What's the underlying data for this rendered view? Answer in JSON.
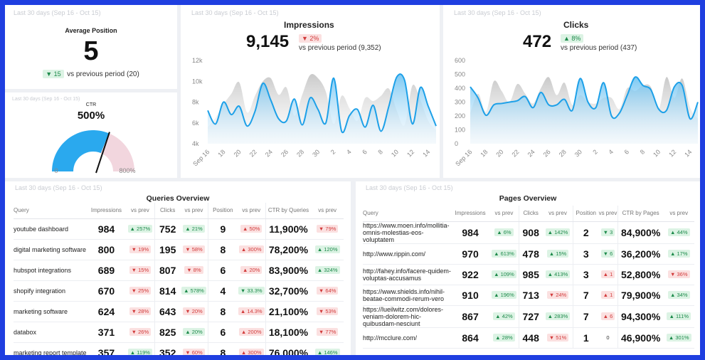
{
  "avg_position": {
    "period": "Last 30 days (Sep 16 - Oct 15)",
    "title": "Average Position",
    "value": "5",
    "delta": "▼ 15",
    "vs": "vs previous period (20)"
  },
  "ctr": {
    "period": "Last 30 days (Sep 16 - Oct 15)",
    "title": "CTR",
    "value": "500%",
    "gauge_min": "0",
    "gauge_max": "800%",
    "gauge_fraction": 0.625,
    "colors": {
      "fill": "#2aa9ee",
      "rest": "#f2d6de"
    }
  },
  "impressions": {
    "period": "Last 30 days (Sep 16 - Oct 15)",
    "title": "Impressions",
    "value": "9,145",
    "delta": "▼ 2%",
    "vs": "vs previous period (9,352)"
  },
  "clicks": {
    "period": "Last 30 days (Sep 16 - Oct 15)",
    "title": "Clicks",
    "value": "472",
    "delta": "▲ 8%",
    "vs": "vs previous period (437)"
  },
  "chart_data": [
    {
      "type": "area",
      "title": "Impressions",
      "x": [
        "Sep 16",
        "17",
        "18",
        "19",
        "20",
        "21",
        "22",
        "23",
        "24",
        "25",
        "26",
        "27",
        "28",
        "29",
        "30",
        "1",
        "2",
        "3",
        "4",
        "5",
        "6",
        "7",
        "8",
        "9",
        "10",
        "11",
        "12",
        "13",
        "14",
        "15"
      ],
      "xtick_labels": [
        "Sep 16",
        "18",
        "20",
        "22",
        "24",
        "26",
        "28",
        "30",
        "2",
        "4",
        "6",
        "8",
        "10",
        "12",
        "14"
      ],
      "ylim": [
        4000,
        12000
      ],
      "yticks": [
        "12k",
        "10k",
        "8k",
        "6k",
        "4k"
      ],
      "series": [
        {
          "values": [
            7200,
            5900,
            8000,
            6800,
            7600,
            5700,
            7100,
            9800,
            8200,
            6400,
            6200,
            8300,
            5800,
            8400,
            7300,
            6000,
            10300,
            5200,
            6700,
            7300,
            5600,
            7700,
            5200,
            7600,
            10400,
            10100,
            5900,
            9400,
            7600,
            5700
          ]
        },
        {
          "values": [
            5600,
            6500,
            7800,
            8800,
            9900,
            7000,
            8600,
            10000,
            10300,
            8700,
            9400,
            6700,
            8700,
            10600,
            10300,
            9000,
            5900,
            8600,
            7400,
            6200,
            8400,
            8100,
            8600,
            9300,
            7200,
            5800,
            9600,
            8200,
            6200,
            5300
          ]
        }
      ],
      "colors": {
        "line": "#1da0e8",
        "area": "#cfe6f8",
        "prev": "#d9d9d9"
      }
    },
    {
      "type": "area",
      "title": "Clicks",
      "x": [
        "Sep 16",
        "17",
        "18",
        "19",
        "20",
        "21",
        "22",
        "23",
        "24",
        "25",
        "26",
        "27",
        "28",
        "29",
        "30",
        "1",
        "2",
        "3",
        "4",
        "5",
        "6",
        "7",
        "8",
        "9",
        "10",
        "11",
        "12",
        "13",
        "14",
        "15"
      ],
      "xtick_labels": [
        "Sep 16",
        "18",
        "20",
        "22",
        "24",
        "26",
        "28",
        "30",
        "2",
        "4",
        "6",
        "8",
        "10",
        "12",
        "14"
      ],
      "ylim": [
        0,
        600
      ],
      "yticks": [
        "600",
        "500",
        "400",
        "300",
        "200",
        "100",
        "0"
      ],
      "series": [
        {
          "values": [
            410,
            330,
            205,
            280,
            290,
            300,
            310,
            340,
            260,
            370,
            280,
            280,
            320,
            240,
            470,
            300,
            260,
            440,
            200,
            220,
            350,
            480,
            420,
            390,
            250,
            240,
            410,
            420,
            180,
            300
          ]
        },
        {
          "values": [
            220,
            360,
            230,
            450,
            380,
            300,
            430,
            360,
            290,
            400,
            480,
            350,
            440,
            280,
            350,
            300,
            290,
            330,
            330,
            250,
            400,
            380,
            420,
            410,
            250,
            480,
            330,
            470,
            260,
            180
          ]
        }
      ],
      "colors": {
        "line": "#1da0e8",
        "area": "#cfe6f8",
        "prev": "#d9d9d9"
      }
    }
  ],
  "queries": {
    "period": "Last 30 days (Sep 16 - Oct 15)",
    "title": "Queries Overview",
    "headers": [
      "Query",
      "Impressions",
      "vs prev",
      "Clicks",
      "vs prev",
      "Position",
      "vs prev",
      "CTR by Queries",
      "vs prev"
    ],
    "rows": [
      {
        "name": "youtube dashboard",
        "imp": "984",
        "imp_d": "▲ 257%",
        "imp_up": true,
        "clk": "752",
        "clk_d": "▲ 21%",
        "clk_up": true,
        "pos": "9",
        "pos_d": "▲ 50%",
        "pos_up": false,
        "ctr": "11,900%",
        "ctr_d": "▼ 79%",
        "ctr_up": false
      },
      {
        "name": "digital marketing software",
        "imp": "800",
        "imp_d": "▼ 19%",
        "imp_up": false,
        "clk": "195",
        "clk_d": "▼ 58%",
        "clk_up": false,
        "pos": "8",
        "pos_d": "▲ 300%",
        "pos_up": false,
        "ctr": "78,200%",
        "ctr_d": "▲ 120%",
        "ctr_up": true
      },
      {
        "name": "hubspot integrations",
        "imp": "689",
        "imp_d": "▼ 15%",
        "imp_up": false,
        "clk": "807",
        "clk_d": "▼ 8%",
        "clk_up": false,
        "pos": "6",
        "pos_d": "▲ 20%",
        "pos_up": false,
        "ctr": "83,900%",
        "ctr_d": "▲ 324%",
        "ctr_up": true
      },
      {
        "name": "shopify integration",
        "imp": "670",
        "imp_d": "▼ 25%",
        "imp_up": false,
        "clk": "814",
        "clk_d": "▲ 578%",
        "clk_up": true,
        "pos": "4",
        "pos_d": "▼ 33.3%",
        "pos_up": true,
        "ctr": "32,700%",
        "ctr_d": "▼ 64%",
        "ctr_up": false
      },
      {
        "name": "marketing software",
        "imp": "624",
        "imp_d": "▼ 28%",
        "imp_up": false,
        "clk": "643",
        "clk_d": "▼ 20%",
        "clk_up": false,
        "pos": "8",
        "pos_d": "▲ 14.3%",
        "pos_up": false,
        "ctr": "21,100%",
        "ctr_d": "▼ 53%",
        "ctr_up": false
      },
      {
        "name": "databox",
        "imp": "371",
        "imp_d": "▼ 26%",
        "imp_up": false,
        "clk": "825",
        "clk_d": "▲ 20%",
        "clk_up": true,
        "pos": "6",
        "pos_d": "▲ 200%",
        "pos_up": false,
        "ctr": "18,100%",
        "ctr_d": "▼ 77%",
        "ctr_up": false
      },
      {
        "name": "marketing report template",
        "imp": "357",
        "imp_d": "▲ 119%",
        "imp_up": true,
        "clk": "352",
        "clk_d": "▼ 60%",
        "clk_up": false,
        "pos": "8",
        "pos_d": "▲ 300%",
        "pos_up": false,
        "ctr": "76,000%",
        "ctr_d": "▲ 146%",
        "ctr_up": true
      }
    ]
  },
  "pages": {
    "period": "Last 30 days (Sep 16 - Oct 15)",
    "title": "Pages Overview",
    "headers": [
      "Query",
      "Impressions",
      "vs prev",
      "Clicks",
      "vs prev",
      "Position",
      "vs prev",
      "CTR by Pages",
      "vs prev"
    ],
    "rows": [
      {
        "name": "https://www.moen.info/mollitia-omnis-molestias-eos-voluptatem",
        "imp": "984",
        "imp_d": "▲ 6%",
        "imp_up": true,
        "clk": "908",
        "clk_d": "▲ 142%",
        "clk_up": true,
        "pos": "2",
        "pos_d": "▼ 3",
        "pos_up": true,
        "ctr": "84,900%",
        "ctr_d": "▲ 44%",
        "ctr_up": true
      },
      {
        "name": "http://www.rippin.com/",
        "imp": "970",
        "imp_d": "▲ 613%",
        "imp_up": true,
        "clk": "478",
        "clk_d": "▲ 15%",
        "clk_up": true,
        "pos": "3",
        "pos_d": "▼ 6",
        "pos_up": true,
        "ctr": "36,200%",
        "ctr_d": "▲ 17%",
        "ctr_up": true
      },
      {
        "name": "http://fahey.info/facere-quidem-voluptas-accusamus",
        "imp": "922",
        "imp_d": "▲ 109%",
        "imp_up": true,
        "clk": "985",
        "clk_d": "▲ 413%",
        "clk_up": true,
        "pos": "3",
        "pos_d": "▲ 1",
        "pos_up": false,
        "ctr": "52,800%",
        "ctr_d": "▼ 36%",
        "ctr_up": false
      },
      {
        "name": "https://www.shields.info/nihil-beatae-commodi-rerum-vero",
        "imp": "910",
        "imp_d": "▲ 196%",
        "imp_up": true,
        "clk": "713",
        "clk_d": "▼ 24%",
        "clk_up": false,
        "pos": "7",
        "pos_d": "▲ 1",
        "pos_up": false,
        "ctr": "79,900%",
        "ctr_d": "▲ 34%",
        "ctr_up": true
      },
      {
        "name": "https://lueilwitz.com/dolores-veniam-dolorem-hic-quibusdam-nesciunt",
        "imp": "867",
        "imp_d": "▲ 42%",
        "imp_up": true,
        "clk": "727",
        "clk_d": "▲ 283%",
        "clk_up": true,
        "pos": "7",
        "pos_d": "▲ 6",
        "pos_up": false,
        "ctr": "94,300%",
        "ctr_d": "▲ 111%",
        "ctr_up": true
      },
      {
        "name": "http://mcclure.com/",
        "imp": "864",
        "imp_d": "▲ 28%",
        "imp_up": true,
        "clk": "448",
        "clk_d": "▼ 51%",
        "clk_up": false,
        "pos": "1",
        "pos_d": "0",
        "pos_up": null,
        "ctr": "46,900%",
        "ctr_d": "▲ 301%",
        "ctr_up": true
      }
    ]
  }
}
